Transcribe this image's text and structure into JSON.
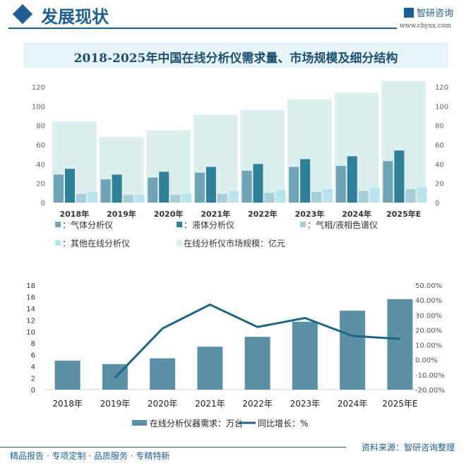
{
  "header": {
    "title": "发展现状",
    "logo_text": "智研咨询",
    "url": "www.chyxx.com"
  },
  "chart_title": "2018-2025年中国在线分析仪需求量、市场规模及细分结构",
  "colors": {
    "gas": "#6fa3b5",
    "liquid": "#2f8098",
    "chroma": "#a6cdd8",
    "other": "#b8e4ee",
    "market": "#dcefef",
    "demand": "#5b8fa6",
    "growth": "#1c6684"
  },
  "chart_data": [
    {
      "type": "bar",
      "categories": [
        "2018年",
        "2019年",
        "2020年",
        "2021年",
        "2022年",
        "2023年",
        "2024年",
        "2025年E"
      ],
      "ylim": [
        0,
        120
      ],
      "yticks": [
        0,
        20,
        40,
        60,
        80,
        100,
        120
      ],
      "legend": "bottom",
      "grid": false,
      "series": [
        {
          "name": "：气体分析仪",
          "values": [
            29,
            24,
            26,
            31,
            33,
            37,
            38,
            43
          ]
        },
        {
          "name": "：液体分析仪",
          "values": [
            35,
            29,
            32,
            37,
            40,
            45,
            48,
            54
          ]
        },
        {
          "name": "：气相/液相色谱仪",
          "values": [
            9,
            8,
            8,
            9,
            10,
            11,
            12,
            14
          ]
        },
        {
          "name": "：其他在线分析仪",
          "values": [
            11,
            8,
            9,
            12,
            13,
            14,
            15,
            16
          ]
        },
        {
          "name": "在线分析仪市场规模：亿元",
          "values": [
            84,
            68,
            75,
            91,
            96,
            107,
            114,
            126
          ]
        }
      ]
    },
    {
      "type": "bar+line",
      "categories": [
        "2018年",
        "2019年",
        "2020年",
        "2021年",
        "2022年",
        "2023年",
        "2024年",
        "2025年E"
      ],
      "ylim": [
        0,
        18
      ],
      "yticks": [
        0,
        2,
        4,
        6,
        8,
        10,
        12,
        14,
        16,
        18
      ],
      "y2lim": [
        -20,
        50
      ],
      "y2ticks": [
        "-20.00%",
        "-10.00%",
        "0.00%",
        "10.00%",
        "20.00%",
        "30.00%",
        "40.00%",
        "50.00%"
      ],
      "legend": "bottom",
      "grid": false,
      "series": [
        {
          "name": "在线分析仪器需求：万台",
          "values": [
            5.0,
            4.4,
            5.4,
            7.4,
            9.1,
            11.7,
            13.6,
            15.6
          ]
        },
        {
          "name": "同比增长：%",
          "values": [
            null,
            -12,
            21,
            37,
            22,
            28,
            16,
            14
          ]
        }
      ]
    }
  ],
  "footer": {
    "tagline": "精品报告 · 专项定制 · 品质服务 · 专精特新",
    "source": "资料来源：智研咨询整理"
  }
}
